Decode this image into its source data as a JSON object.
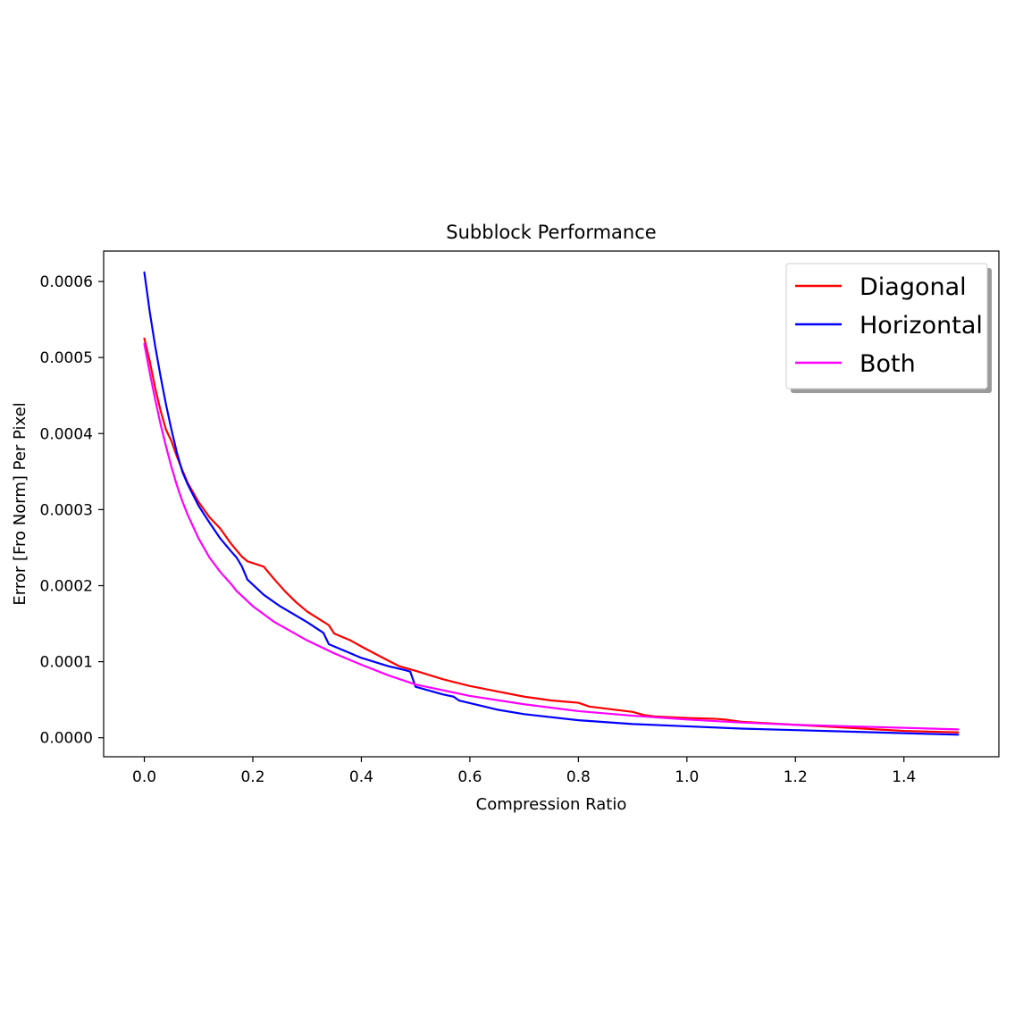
{
  "chart_data": {
    "type": "line",
    "title": "Subblock Performance",
    "xlabel": "Compression Ratio",
    "ylabel": "Error [Fro Norm] Per Pixel",
    "xlim": [
      -0.075,
      1.575
    ],
    "ylim": [
      -2.5e-05,
      0.00064
    ],
    "x_ticks": [
      0.0,
      0.2,
      0.4,
      0.6,
      0.8,
      1.0,
      1.2,
      1.4
    ],
    "x_tick_labels": [
      "0.0",
      "0.2",
      "0.4",
      "0.6",
      "0.8",
      "1.0",
      "1.2",
      "1.4"
    ],
    "y_ticks": [
      0.0,
      0.0001,
      0.0002,
      0.0003,
      0.0004,
      0.0005,
      0.0006
    ],
    "y_tick_labels": [
      "0.0000",
      "0.0001",
      "0.0002",
      "0.0003",
      "0.0004",
      "0.0005",
      "0.0006"
    ],
    "grid": false,
    "legend_position": "top-right",
    "series": [
      {
        "name": "Diagonal",
        "color": "#ff0000",
        "x": [
          0.0,
          0.01,
          0.02,
          0.03,
          0.04,
          0.05,
          0.06,
          0.07,
          0.08,
          0.1,
          0.12,
          0.14,
          0.16,
          0.18,
          0.19,
          0.22,
          0.24,
          0.26,
          0.28,
          0.3,
          0.32,
          0.34,
          0.35,
          0.38,
          0.4,
          0.44,
          0.47,
          0.5,
          0.55,
          0.6,
          0.65,
          0.7,
          0.75,
          0.8,
          0.82,
          0.9,
          0.92,
          0.94,
          1.0,
          1.05,
          1.07,
          1.1,
          1.2,
          1.3,
          1.35,
          1.4,
          1.5
        ],
        "y": [
          0.000525,
          0.000495,
          0.00046,
          0.00043,
          0.000405,
          0.00039,
          0.00037,
          0.000352,
          0.000335,
          0.00031,
          0.00029,
          0.000275,
          0.000255,
          0.000238,
          0.000232,
          0.000225,
          0.000208,
          0.000192,
          0.000178,
          0.000166,
          0.000157,
          0.000148,
          0.000137,
          0.000128,
          0.00012,
          0.000105,
          9.4e-05,
          8.8e-05,
          7.7e-05,
          6.8e-05,
          6.1e-05,
          5.4e-05,
          4.9e-05,
          4.6e-05,
          4.1e-05,
          3.4e-05,
          3e-05,
          2.8e-05,
          2.6e-05,
          2.5e-05,
          2.4e-05,
          2.1e-05,
          1.7e-05,
          1.3e-05,
          1.1e-05,
          9e-06,
          7e-06
        ]
      },
      {
        "name": "Horizontal",
        "color": "#0000ff",
        "x": [
          0.0,
          0.01,
          0.02,
          0.03,
          0.04,
          0.05,
          0.06,
          0.07,
          0.08,
          0.1,
          0.12,
          0.14,
          0.16,
          0.17,
          0.18,
          0.19,
          0.22,
          0.25,
          0.3,
          0.33,
          0.34,
          0.36,
          0.4,
          0.45,
          0.48,
          0.49,
          0.5,
          0.55,
          0.57,
          0.58,
          0.65,
          0.7,
          0.8,
          0.9,
          1.0,
          1.1,
          1.2,
          1.3,
          1.4,
          1.5
        ],
        "y": [
          0.000612,
          0.00056,
          0.000515,
          0.000475,
          0.000438,
          0.000405,
          0.000375,
          0.00035,
          0.000333,
          0.000305,
          0.000283,
          0.000262,
          0.000245,
          0.000237,
          0.000225,
          0.000208,
          0.000188,
          0.000173,
          0.000152,
          0.000138,
          0.000123,
          0.000117,
          0.000105,
          9.4e-05,
          8.9e-05,
          8.7e-05,
          6.7e-05,
          5.7e-05,
          5.4e-05,
          4.9e-05,
          3.7e-05,
          3.1e-05,
          2.3e-05,
          1.8e-05,
          1.5e-05,
          1.2e-05,
          1e-05,
          8e-06,
          6e-06,
          4e-06
        ]
      },
      {
        "name": "Both",
        "color": "#ff00ff",
        "x": [
          0.0,
          0.01,
          0.02,
          0.03,
          0.04,
          0.05,
          0.06,
          0.07,
          0.08,
          0.1,
          0.12,
          0.14,
          0.16,
          0.17,
          0.2,
          0.24,
          0.3,
          0.35,
          0.4,
          0.45,
          0.5,
          0.6,
          0.7,
          0.8,
          0.9,
          1.0,
          1.1,
          1.2,
          1.3,
          1.4,
          1.5
        ],
        "y": [
          0.000518,
          0.00048,
          0.000445,
          0.000412,
          0.000383,
          0.000356,
          0.000332,
          0.000311,
          0.000293,
          0.000262,
          0.000237,
          0.000218,
          0.000202,
          0.000193,
          0.000173,
          0.000152,
          0.000128,
          0.000111,
          9.6e-05,
          8.2e-05,
          7e-05,
          5.5e-05,
          4.4e-05,
          3.5e-05,
          2.9e-05,
          2.4e-05,
          2e-05,
          1.7e-05,
          1.5e-05,
          1.3e-05,
          1.1e-05
        ]
      }
    ]
  }
}
